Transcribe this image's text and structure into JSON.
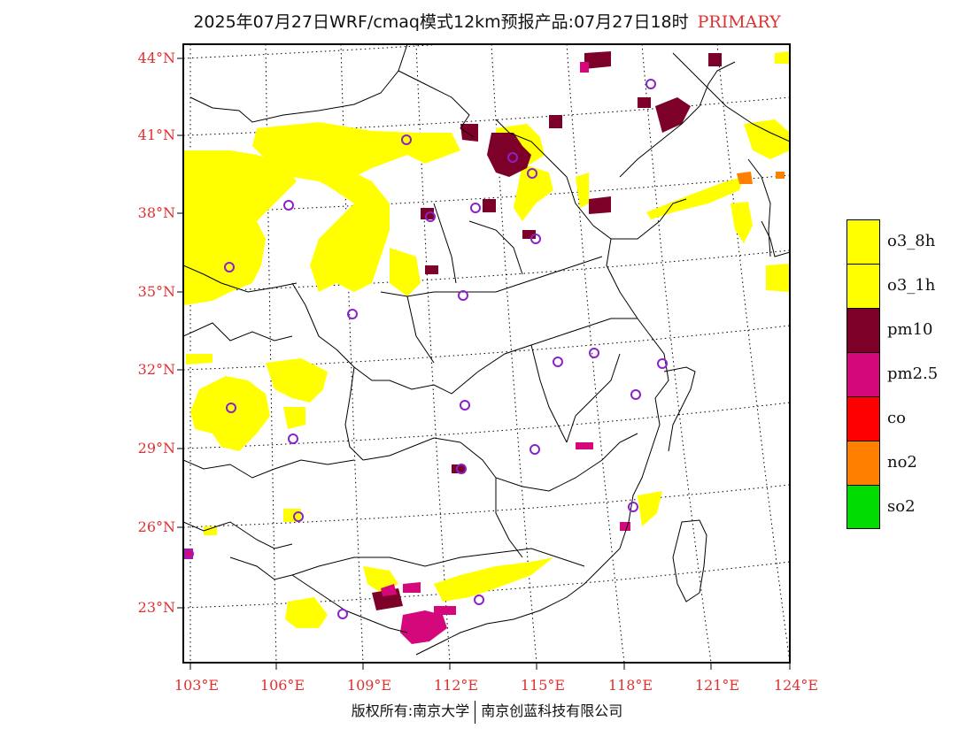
{
  "title": {
    "text": "2025年07月27日WRF/cmaq模式12km预报产品:07月27日18时",
    "tag": "PRIMARY",
    "tag_color": "#e03030"
  },
  "map": {
    "lat_labels": [
      "44°N",
      "41°N",
      "38°N",
      "35°N",
      "32°N",
      "29°N",
      "26°N",
      "23°N"
    ],
    "lon_labels": [
      "103°E",
      "106°E",
      "109°E",
      "112°E",
      "115°E",
      "118°E",
      "121°E",
      "124°E"
    ],
    "label_color": "#e03030",
    "pollutant_patches": [
      {
        "pollutant": "o3_8h",
        "region": "Inner Mongolia belt"
      },
      {
        "pollutant": "o3_8h",
        "region": "Gansu / Ningxia / Shaanxi north"
      },
      {
        "pollutant": "o3_8h",
        "region": "Sichuan basin"
      },
      {
        "pollutant": "o3_8h",
        "region": "Guangdong coast"
      },
      {
        "pollutant": "o3_8h",
        "region": "Bohai / Liaoning"
      },
      {
        "pollutant": "pm10",
        "region": "Beijing-Tianjin-Hebei"
      },
      {
        "pollutant": "pm2.5",
        "region": "Pearl River Delta"
      },
      {
        "pollutant": "no2",
        "region": "Liaodong peninsula"
      }
    ]
  },
  "legend": {
    "items": [
      {
        "label": "o3_8h",
        "color": "#ffff00"
      },
      {
        "label": "o3_1h",
        "color": "#ffff00"
      },
      {
        "label": "pm10",
        "color": "#7d0028"
      },
      {
        "label": "pm2.5",
        "color": "#d4087a"
      },
      {
        "label": "co",
        "color": "#ff0000"
      },
      {
        "label": "no2",
        "color": "#ff8000"
      },
      {
        "label": "so2",
        "color": "#00dd00"
      }
    ]
  },
  "footer": {
    "left": "版权所有:南京大学",
    "right": "南京创蓝科技有限公司"
  }
}
